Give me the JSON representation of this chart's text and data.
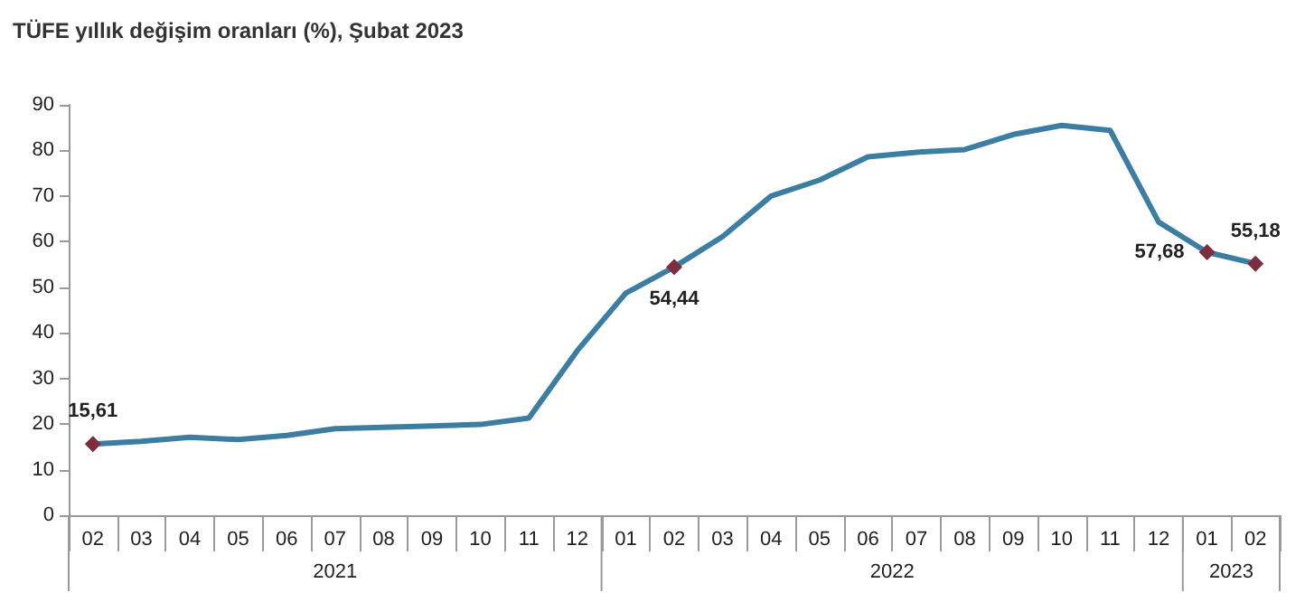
{
  "chart_data": {
    "type": "line",
    "title": "TÜFE yıllık değişim oranları (%), Şubat 2023",
    "categories": [
      "02",
      "03",
      "04",
      "05",
      "06",
      "07",
      "08",
      "09",
      "10",
      "11",
      "12",
      "01",
      "02",
      "03",
      "04",
      "05",
      "06",
      "07",
      "08",
      "09",
      "10",
      "11",
      "12",
      "01",
      "02"
    ],
    "series": [
      {
        "color": "#3b7ea1",
        "values": [
          15.61,
          16.2,
          17.1,
          16.6,
          17.5,
          19,
          19.3,
          19.6,
          19.9,
          21.3,
          36.1,
          48.7,
          54.44,
          61.1,
          70,
          73.5,
          78.6,
          79.6,
          80.2,
          83.5,
          85.5,
          84.4,
          64.3,
          57.68,
          55.18
        ],
        "value_labels": [
          "15,61",
          null,
          null,
          null,
          null,
          null,
          null,
          null,
          null,
          null,
          null,
          null,
          "54,44",
          null,
          null,
          null,
          null,
          null,
          null,
          null,
          null,
          null,
          null,
          "57,68",
          "55,18"
        ]
      }
    ],
    "annotations": [
      "2021",
      "2022",
      "2023"
    ],
    "ylim": [
      0,
      90
    ],
    "yticks": [
      0,
      10,
      20,
      30,
      40,
      50,
      60,
      70,
      80,
      90
    ],
    "grid": false,
    "line_style": "solid"
  }
}
